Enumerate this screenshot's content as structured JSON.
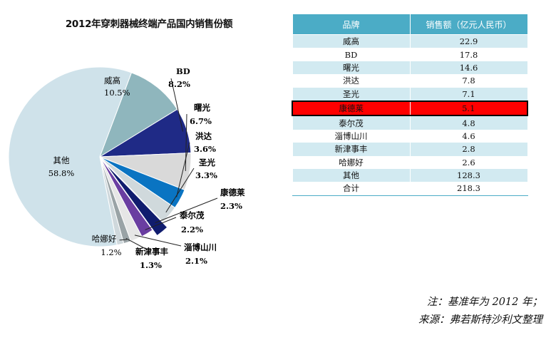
{
  "chart_data": [
    {
      "type": "pie",
      "title": "2012年穿刺器械终端产品国内销售份额",
      "slices": [
        {
          "label": "威高",
          "pct": "10.5%",
          "value": 10.5,
          "color": "#8fb6bd",
          "explode": 0
        },
        {
          "label": "BD",
          "pct": "8.2%",
          "value": 8.2,
          "color": "#1f2a86",
          "explode": 0
        },
        {
          "label": "曙光",
          "pct": "6.7%",
          "value": 6.7,
          "color": "#d9d9d9",
          "explode": 0
        },
        {
          "label": "洪达",
          "pct": "3.6%",
          "value": 3.6,
          "color": "#0a74c2",
          "explode": 0
        },
        {
          "label": "圣光",
          "pct": "3.3%",
          "value": 3.3,
          "color": "#d0d9dc",
          "explode": 0
        },
        {
          "label": "康德莱",
          "pct": "2.3%",
          "value": 2.3,
          "color": "#101c6e",
          "explode": 1
        },
        {
          "label": "泰尔茂",
          "pct": "2.2%",
          "value": 2.2,
          "color": "#6a3ea1",
          "explode": 0
        },
        {
          "label": "淄博山川",
          "pct": "2.1%",
          "value": 2.1,
          "color": "#e6e6e6",
          "explode": 0
        },
        {
          "label": "新津事丰",
          "pct": "1.3%",
          "value": 1.3,
          "color": "#9aa3a6",
          "explode": 0
        },
        {
          "label": "哈娜好",
          "pct": "1.2%",
          "value": 1.2,
          "color": "#cfd8dc",
          "explode": 0
        },
        {
          "label": "其他",
          "pct": "58.8%",
          "value": 58.8,
          "color": "#cfe2ea",
          "explode": 0
        }
      ]
    },
    {
      "type": "table",
      "headers": [
        "品牌",
        "销售额（亿元人民币）"
      ],
      "rows": [
        {
          "brand": "威高",
          "sales": "22.9",
          "highlight": false
        },
        {
          "brand": "BD",
          "sales": "17.8",
          "highlight": false
        },
        {
          "brand": "曙光",
          "sales": "14.6",
          "highlight": false
        },
        {
          "brand": "洪达",
          "sales": "7.8",
          "highlight": false
        },
        {
          "brand": "圣光",
          "sales": "7.1",
          "highlight": false
        },
        {
          "brand": "康德莱",
          "sales": "5.1",
          "highlight": true
        },
        {
          "brand": "泰尔茂",
          "sales": "4.8",
          "highlight": false
        },
        {
          "brand": "淄博山川",
          "sales": "4.6",
          "highlight": false
        },
        {
          "brand": "新津事丰",
          "sales": "2.8",
          "highlight": false
        },
        {
          "brand": "哈娜好",
          "sales": "2.6",
          "highlight": false
        },
        {
          "brand": "其他",
          "sales": "128.3",
          "highlight": false
        },
        {
          "brand": "合计",
          "sales": "218.3",
          "highlight": false
        }
      ]
    }
  ],
  "notes": {
    "line1": "注：基准年为 2012 年；",
    "line2": "来源：弗若斯特沙利文整理"
  }
}
